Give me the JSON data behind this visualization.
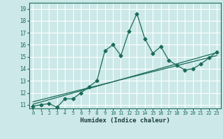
{
  "title": "",
  "xlabel": "Humidex (Indice chaleur)",
  "ylabel": "",
  "bg_color": "#cce8e8",
  "grid_color": "#ffffff",
  "line_color": "#1a6b5a",
  "xlim": [
    -0.5,
    23.5
  ],
  "ylim": [
    10.7,
    19.5
  ],
  "yticks": [
    11,
    12,
    13,
    14,
    15,
    16,
    17,
    18,
    19
  ],
  "xticks": [
    0,
    1,
    2,
    3,
    4,
    5,
    6,
    7,
    8,
    9,
    10,
    11,
    12,
    13,
    14,
    15,
    16,
    17,
    18,
    19,
    20,
    21,
    22,
    23
  ],
  "line1_x": [
    0,
    1,
    2,
    3,
    4,
    5,
    6,
    7,
    8,
    9,
    10,
    11,
    12,
    13,
    14,
    15,
    16,
    17,
    18,
    19,
    20,
    21,
    22,
    23
  ],
  "line1_y": [
    10.9,
    11.0,
    11.1,
    10.8,
    11.5,
    11.5,
    12.0,
    12.5,
    13.0,
    15.5,
    16.0,
    15.1,
    17.1,
    18.6,
    16.5,
    15.3,
    15.85,
    14.7,
    14.3,
    13.9,
    14.0,
    14.4,
    14.9,
    15.4
  ],
  "line2_x": [
    0,
    23
  ],
  "line2_y": [
    11.05,
    15.35
  ],
  "line3_x": [
    0,
    23
  ],
  "line3_y": [
    11.25,
    15.1
  ]
}
